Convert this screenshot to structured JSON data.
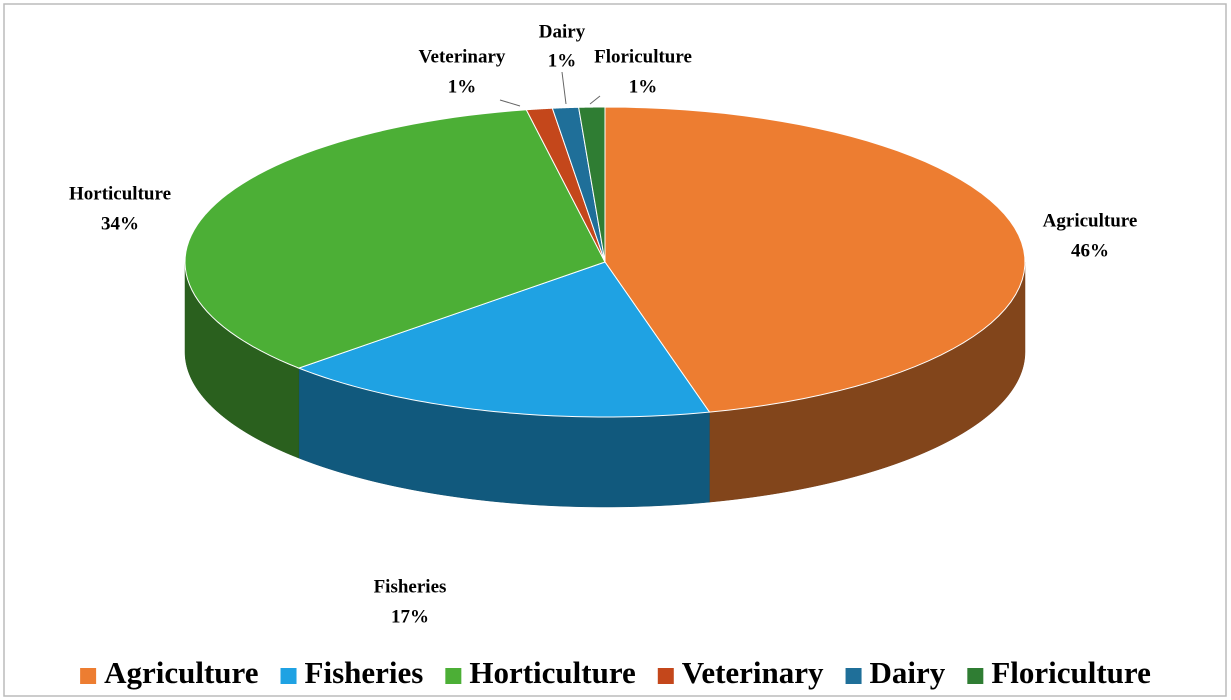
{
  "chart_data": {
    "type": "pie3d",
    "categories": [
      "Agriculture",
      "Fisheries",
      "Horticulture",
      "Veterinary",
      "Dairy",
      "Floriculture"
    ],
    "values": [
      46,
      17,
      34,
      1,
      1,
      1
    ],
    "value_labels": [
      "46%",
      "17%",
      "34%",
      "1%",
      "1%",
      "1%"
    ],
    "colors": [
      "#ed7d31",
      "#1fa2e3",
      "#4caf36",
      "#c4471b",
      "#1f6f99",
      "#2f7d33"
    ],
    "legend": "bottom"
  }
}
